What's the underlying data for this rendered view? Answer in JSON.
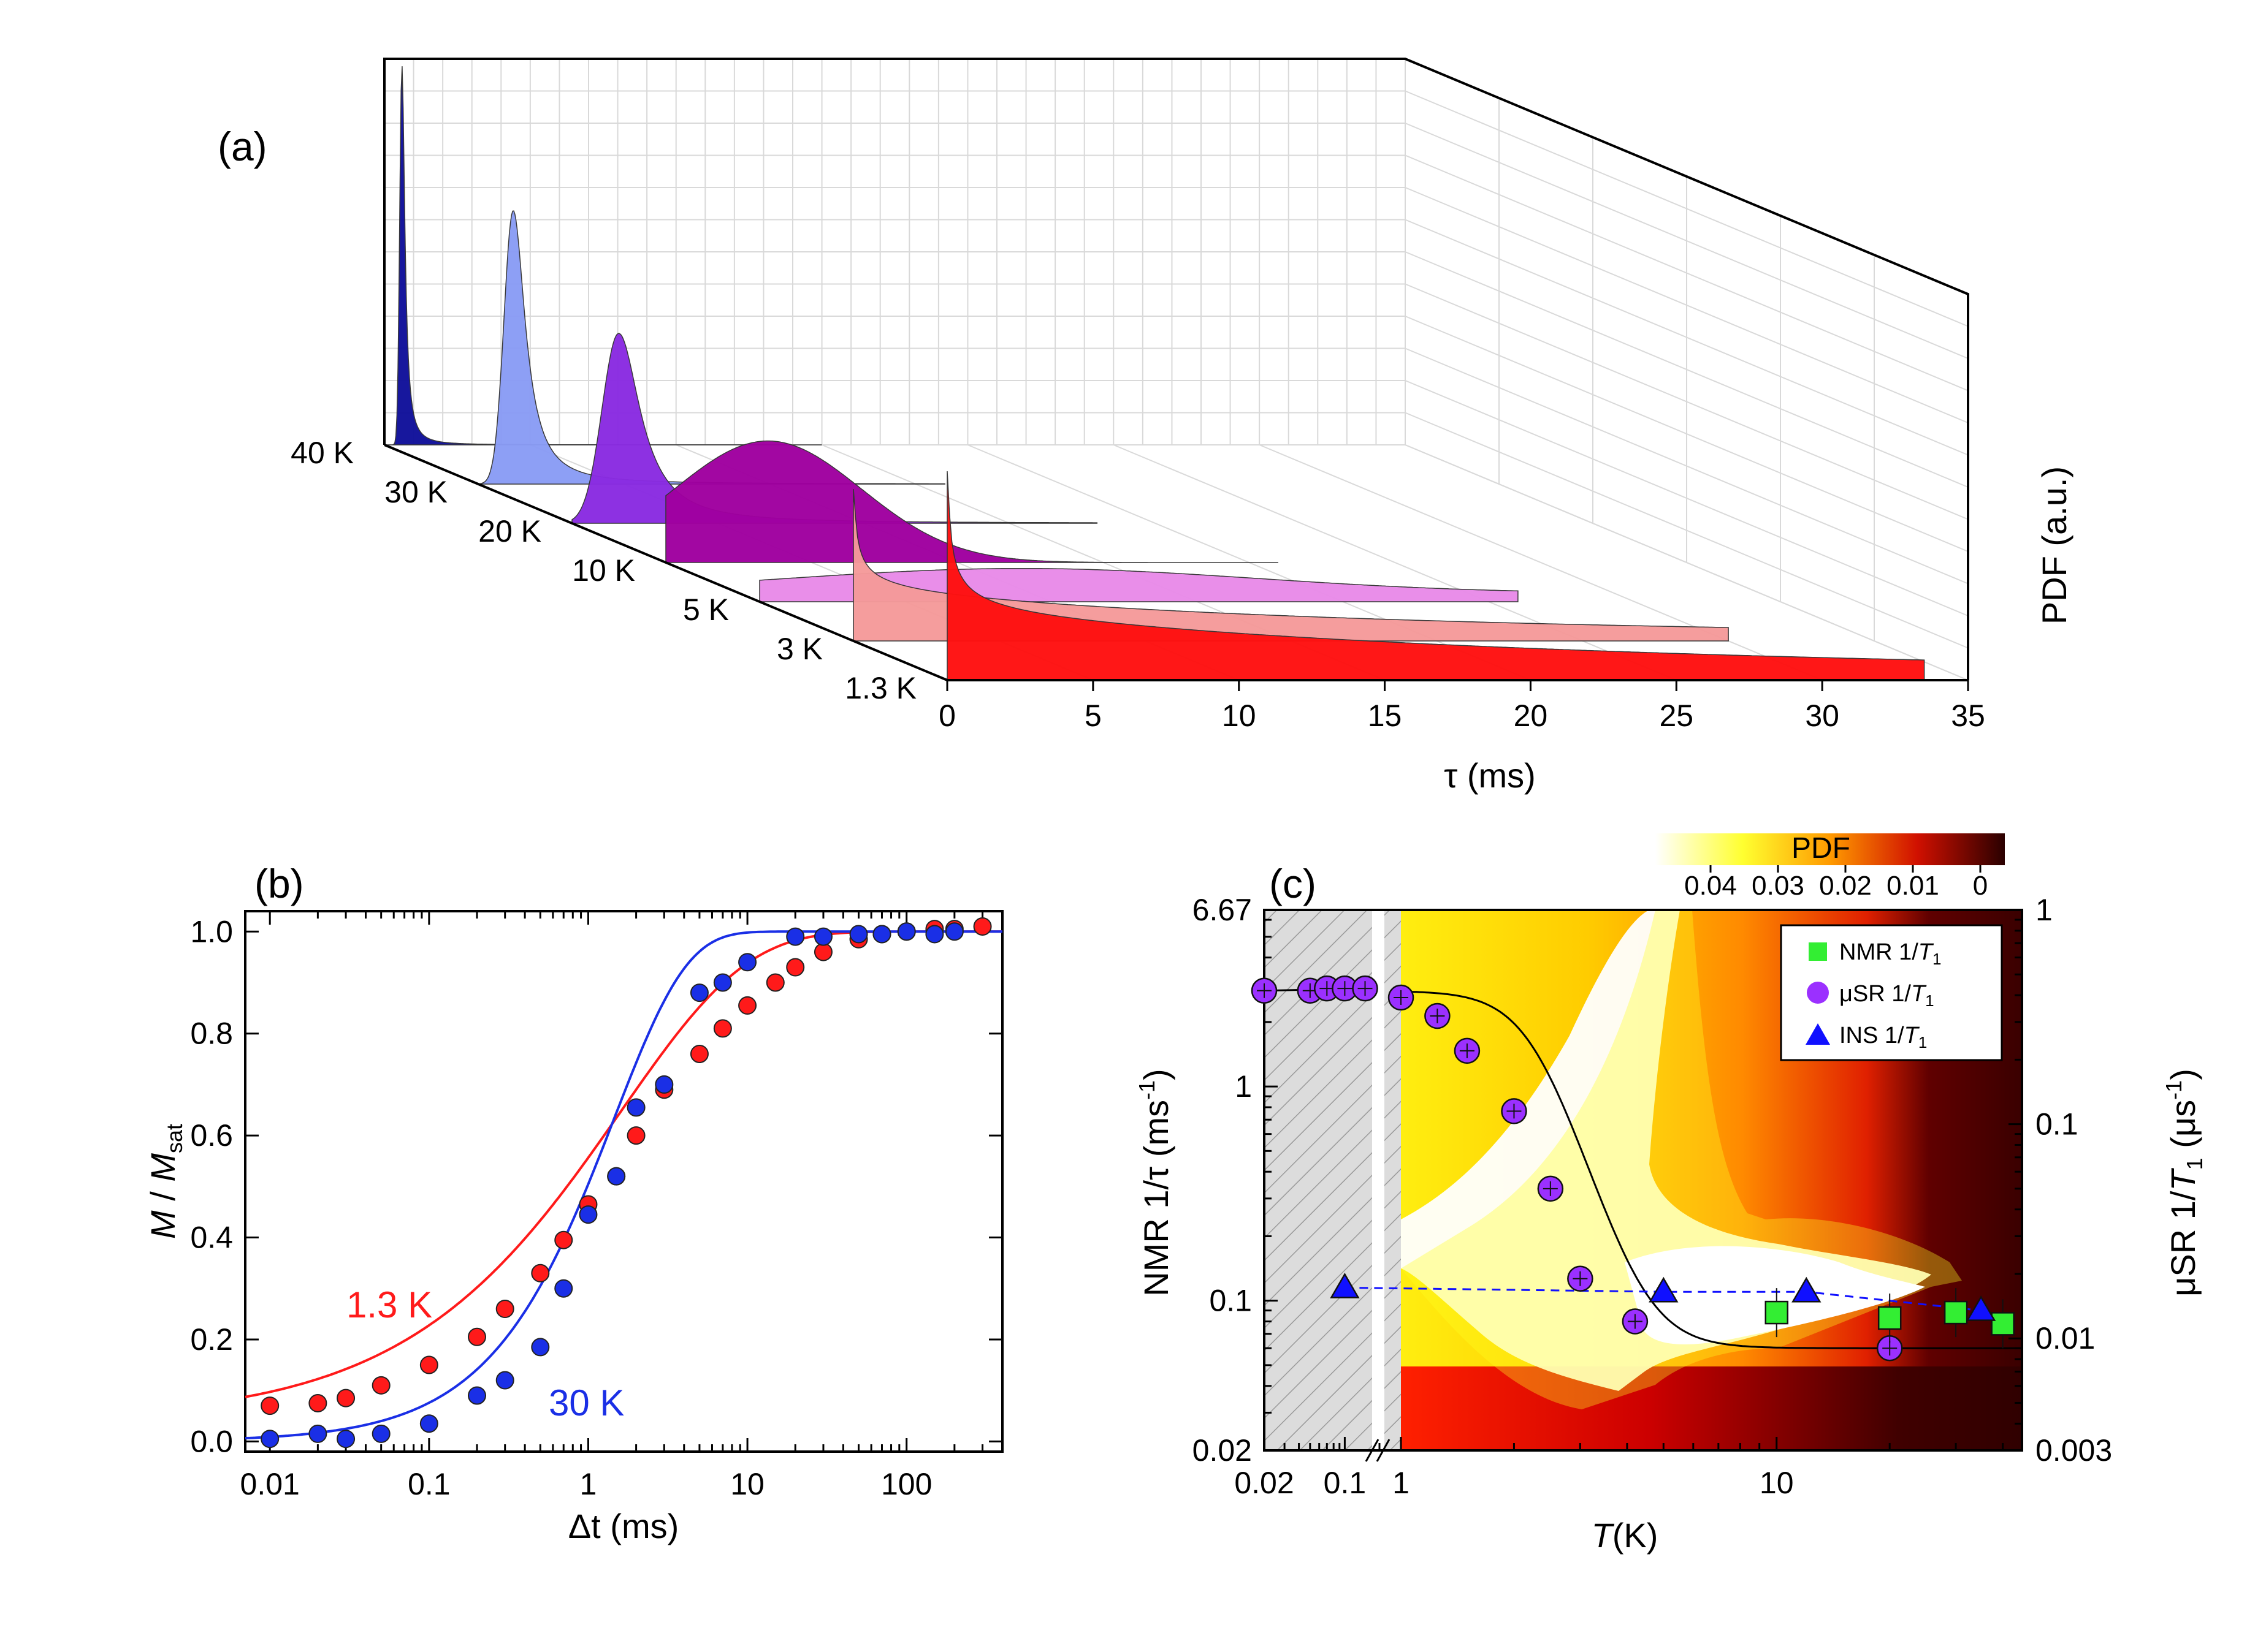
{
  "colors": {
    "red": "#ff1a1a",
    "blue": "#1a2fe6",
    "nmr_green": "#33ee33",
    "musr_purple": "#9b30ff",
    "ins_blue": "#1010ff"
  },
  "chart_data": [
    {
      "panel_label": "(a)",
      "type": "area",
      "title": "",
      "xlabel": "τ (ms)",
      "zlabel": "PDF  (a.u.)",
      "xlim": [
        0,
        35
      ],
      "x_ticks": [
        "0",
        "5",
        "10",
        "15",
        "20",
        "25",
        "30",
        "35"
      ],
      "series": [
        {
          "name": "40 K",
          "peak_tau_ms": 0.6,
          "width_ms": 0.12,
          "rel_height": 1.0,
          "color": "#10109a",
          "ends_ms": 15
        },
        {
          "name": "30 K",
          "peak_tau_ms": 1.2,
          "width_ms": 0.5,
          "rel_height": 0.72,
          "color": "#8a9cf5",
          "ends_ms": 16
        },
        {
          "name": "20 K",
          "peak_tau_ms": 1.6,
          "width_ms": 0.9,
          "rel_height": 0.5,
          "color": "#8a2be2",
          "ends_ms": 18
        },
        {
          "name": "10 K",
          "peak_tau_ms": 3.5,
          "width_ms": 3.2,
          "rel_height": 0.32,
          "color": "#a000a0",
          "ends_ms": 21
        },
        {
          "name": "5 K",
          "peak_tau_ms": 0.0,
          "width_ms": 14,
          "rel_height": 0.12,
          "color": "#e98be9",
          "ends_ms": 26
        },
        {
          "name": "3 K",
          "peak_tau_ms": 0.0,
          "width_ms": 20,
          "rel_height": 0.4,
          "color": "#f59a9a",
          "ends_ms": 30
        },
        {
          "name": "1.3 K",
          "peak_tau_ms": 0.0,
          "width_ms": 25,
          "rel_height": 0.55,
          "color": "#ff1010",
          "ends_ms": 33.5
        }
      ]
    },
    {
      "panel_label": "(b)",
      "type": "scatter",
      "xscale": "log",
      "xlabel": "Δt (ms)",
      "ylabel_main": "M",
      "ylabel_mid": " / ",
      "ylabel_M": "M",
      "ylabel_sub": "sat",
      "xlim": [
        0.007,
        400
      ],
      "ylim": [
        -0.02,
        1.04
      ],
      "x_ticks": [
        0.01,
        0.1,
        1,
        10,
        100
      ],
      "x_tick_labels": [
        "0.01",
        "0.1",
        "1",
        "10",
        "100"
      ],
      "y_ticks": [
        0.0,
        0.2,
        0.4,
        0.6,
        0.8,
        1.0
      ],
      "y_tick_labels": [
        "0.0",
        "0.2",
        "0.4",
        "0.6",
        "0.8",
        "1.0"
      ],
      "series": [
        {
          "name": "1.3 K",
          "color": "#ff1a1a",
          "x": [
            0.01,
            0.02,
            0.03,
            0.05,
            0.1,
            0.2,
            0.3,
            0.5,
            0.7,
            1.0,
            1.5,
            2.0,
            3.0,
            5.0,
            7.0,
            10,
            15,
            20,
            30,
            50,
            70,
            100,
            150,
            200,
            300
          ],
          "y": [
            0.07,
            0.075,
            0.085,
            0.11,
            0.15,
            0.205,
            0.26,
            0.33,
            0.395,
            0.465,
            0.52,
            0.6,
            0.69,
            0.76,
            0.81,
            0.855,
            0.9,
            0.93,
            0.96,
            0.985,
            0.995,
            1.0,
            1.005,
            1.005,
            1.01
          ]
        },
        {
          "name": "30 K",
          "color": "#1a2fe6",
          "x": [
            0.01,
            0.02,
            0.03,
            0.05,
            0.1,
            0.2,
            0.3,
            0.5,
            0.7,
            1.0,
            1.5,
            2.0,
            3.0,
            5.0,
            7.0,
            10,
            20,
            30,
            50,
            70,
            100,
            150,
            200
          ],
          "y": [
            0.005,
            0.015,
            0.005,
            0.015,
            0.035,
            0.09,
            0.12,
            0.185,
            0.3,
            0.445,
            0.52,
            0.655,
            0.7,
            0.88,
            0.9,
            0.94,
            0.99,
            0.99,
            0.995,
            0.995,
            1.0,
            0.995,
            1.0
          ]
        }
      ],
      "annotations": [
        {
          "text": "1.3 K",
          "color": "#ff1a1a"
        },
        {
          "text": "30 K",
          "color": "#1a2fe6"
        }
      ]
    },
    {
      "panel_label": "(c)",
      "type": "heatmap",
      "xscale": "log",
      "xlabel_italic": "T",
      "xlabel_rest": "(K)",
      "ylabel_left": "NMR  1/τ (ms",
      "ylabel_left_sup": "-1",
      "ylabel_left_end": ")",
      "ylabel_right": "μSR 1/",
      "ylabel_right_T": "T",
      "ylabel_right_sub": "1",
      "ylabel_right_unit": " (μs",
      "ylabel_right_sup": "-1",
      "ylabel_right_end": ")",
      "x_ticks_labels": [
        "0.02",
        "0.1",
        "1",
        "10"
      ],
      "y_left_ticks": [
        "6.67",
        "1",
        "0.1",
        "0.02"
      ],
      "y_right_ticks": [
        "1",
        "0.1",
        "0.01",
        "0.003"
      ],
      "colorbar": {
        "title": "PDF",
        "ticks": [
          "0.04",
          "0.03",
          "0.02",
          "0.01",
          "0"
        ]
      },
      "legend": [
        {
          "label": "NMR 1/",
          "label_T": "T",
          "label_sub": "1",
          "marker": "square",
          "color": "#33ee33"
        },
        {
          "label": "μSR 1/",
          "label_T": "T",
          "label_sub": "1",
          "marker": "circle",
          "color": "#9b30ff"
        },
        {
          "label": "INS 1/",
          "label_T": "T",
          "label_sub": "1",
          "marker": "triangle",
          "color": "#1010ff"
        }
      ],
      "musr": {
        "T": [
          0.02,
          0.05,
          0.07,
          0.1,
          0.15,
          1.0,
          1.25,
          1.5,
          2.0,
          2.5,
          3.0,
          4.2,
          20
        ],
        "rate_right": [
          0.42,
          0.42,
          0.43,
          0.43,
          0.43,
          0.39,
          0.32,
          0.22,
          0.115,
          0.05,
          0.019,
          0.012,
          0.009
        ]
      },
      "nmr": {
        "T": [
          10,
          20,
          30,
          40
        ],
        "rate_left": [
          0.088,
          0.083,
          0.088,
          0.078
        ]
      },
      "ins": {
        "T": [
          0.1,
          5,
          12,
          35
        ],
        "rate_left": [
          0.115,
          0.11,
          0.11,
          0.09
        ]
      }
    }
  ]
}
